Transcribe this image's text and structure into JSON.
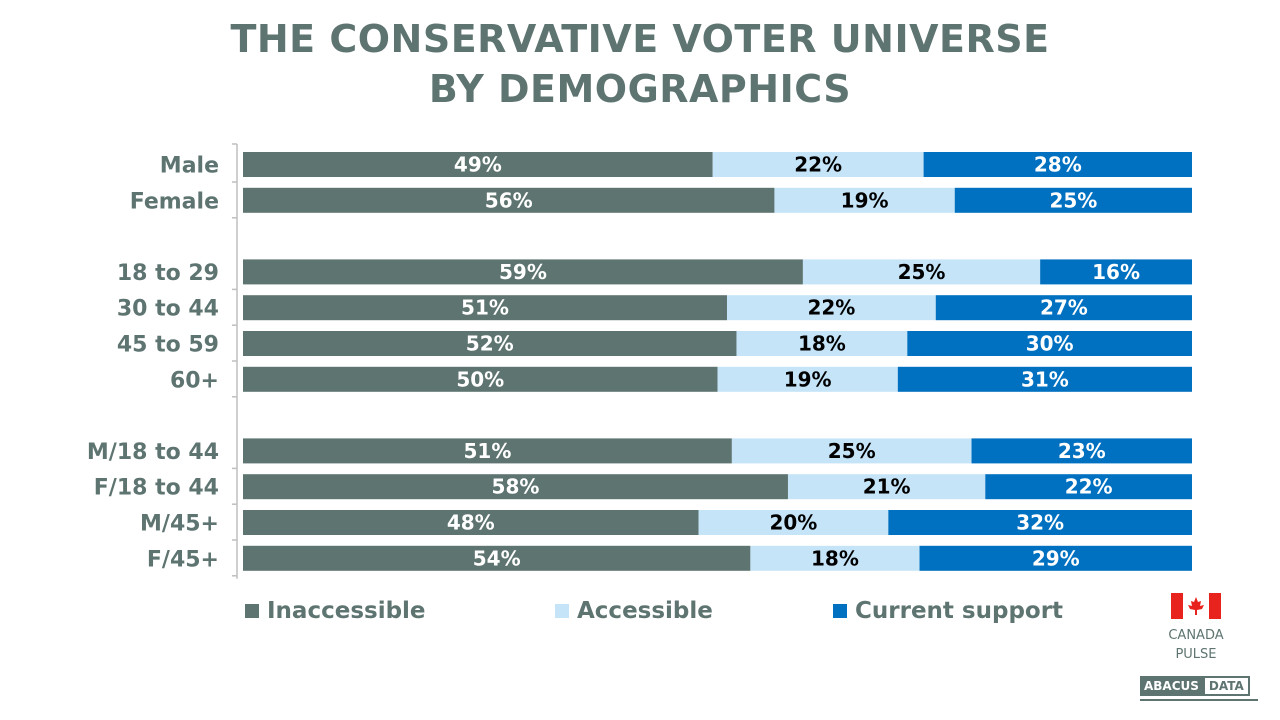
{
  "title": {
    "line1": "THE CONSERVATIVE VOTER UNIVERSE",
    "line2": "BY DEMOGRAPHICS"
  },
  "colors": {
    "title": "#5e7470",
    "inaccessible": "#5e7470",
    "accessible": "#c5e4f8",
    "current_support": "#0070c0",
    "label_dark": "#000000",
    "label_light": "#ffffff",
    "axis": "#bfbfbf"
  },
  "chart_data": {
    "type": "bar",
    "orientation": "horizontal",
    "stacked": true,
    "categories": [
      "Male",
      "Female",
      "18 to 29",
      "30 to 44",
      "45 to 59",
      "60+",
      "M/18 to 44",
      "F/18 to 44",
      "M/45+",
      "F/45+"
    ],
    "groups": [
      [
        0,
        1
      ],
      [
        2,
        3,
        4,
        5
      ],
      [
        6,
        7,
        8,
        9
      ]
    ],
    "series": [
      {
        "name": "Inaccessible",
        "values": [
          49,
          56,
          59,
          51,
          52,
          50,
          51,
          58,
          48,
          54
        ]
      },
      {
        "name": "Accessible",
        "values": [
          22,
          19,
          25,
          22,
          18,
          19,
          25,
          21,
          20,
          18
        ]
      },
      {
        "name": "Current support",
        "values": [
          28,
          25,
          16,
          27,
          30,
          31,
          23,
          22,
          32,
          29
        ]
      }
    ],
    "value_suffix": "%",
    "xlim": [
      0,
      100
    ],
    "legend_position": "bottom",
    "grid": false
  },
  "logo": {
    "line1": "CANADA",
    "line2": "PULSE",
    "brand_left": "ABACUS",
    "brand_right": "DATA"
  }
}
